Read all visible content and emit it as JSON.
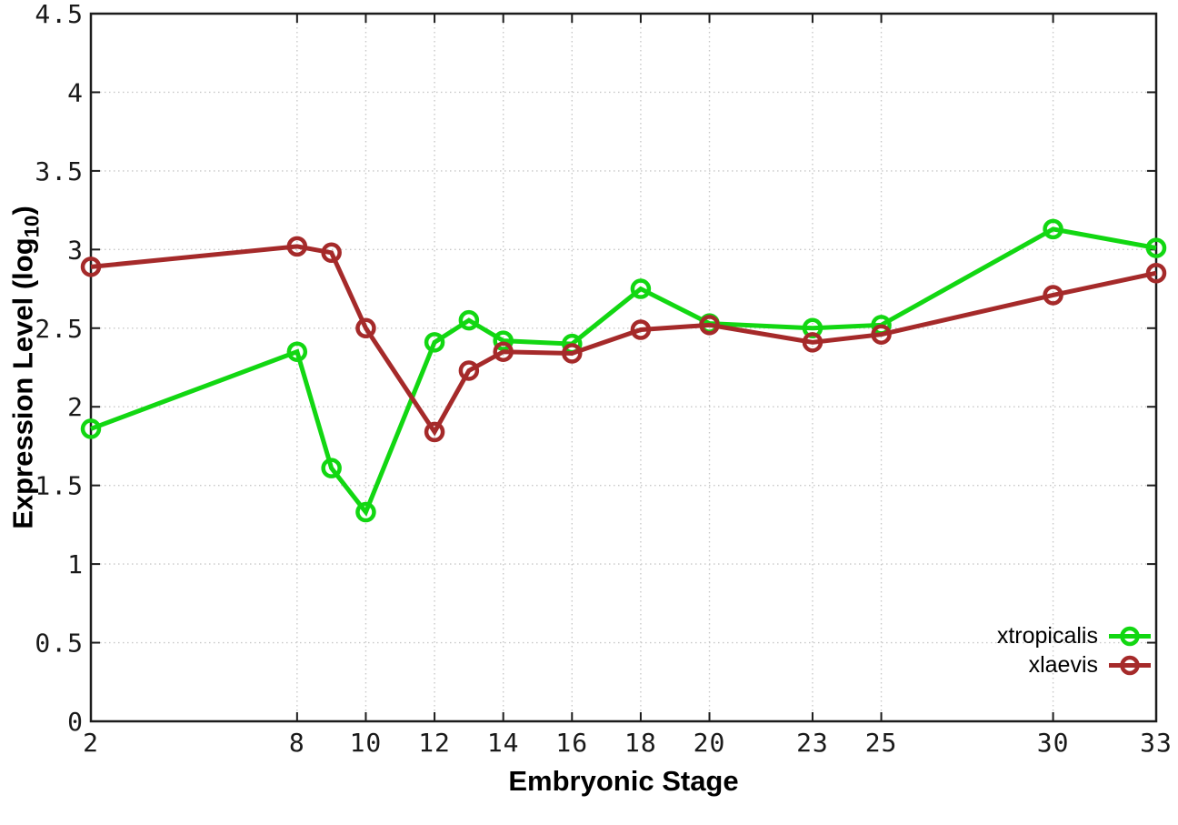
{
  "chart_data": {
    "type": "line",
    "title": "",
    "xlabel": "Embryonic Stage",
    "ylabel": "Expression Level (log10)",
    "ylabel_parts": {
      "prefix": "Expression Level (log",
      "subscript": "10",
      "suffix": ")"
    },
    "xlim": [
      2,
      33
    ],
    "ylim": [
      0,
      4.5
    ],
    "xticks": [
      2,
      8,
      10,
      12,
      14,
      16,
      18,
      20,
      23,
      25,
      30,
      33
    ],
    "yticks": [
      0,
      0.5,
      1,
      1.5,
      2,
      2.5,
      3,
      3.5,
      4,
      4.5
    ],
    "grid": true,
    "legend_position": "bottom-right",
    "marker": "open-circle",
    "x": [
      2,
      8,
      9,
      10,
      12,
      13,
      14,
      16,
      18,
      20,
      23,
      25,
      30,
      33
    ],
    "series": [
      {
        "name": "xtropicalis",
        "color": "#12d712",
        "values": [
          1.86,
          2.35,
          1.61,
          1.33,
          2.41,
          2.55,
          2.42,
          2.4,
          2.75,
          2.53,
          2.5,
          2.52,
          3.13,
          3.01
        ]
      },
      {
        "name": "xlaevis",
        "color": "#a52a2a",
        "values": [
          2.89,
          3.02,
          2.98,
          2.5,
          1.84,
          2.23,
          2.35,
          2.34,
          2.49,
          2.52,
          2.41,
          2.46,
          2.71,
          2.85
        ]
      }
    ],
    "colors": {
      "grid": "#c8c8c8",
      "border": "#1c1c1c",
      "tick_label": "#1a1a1a",
      "axis_label": "#000000"
    }
  }
}
